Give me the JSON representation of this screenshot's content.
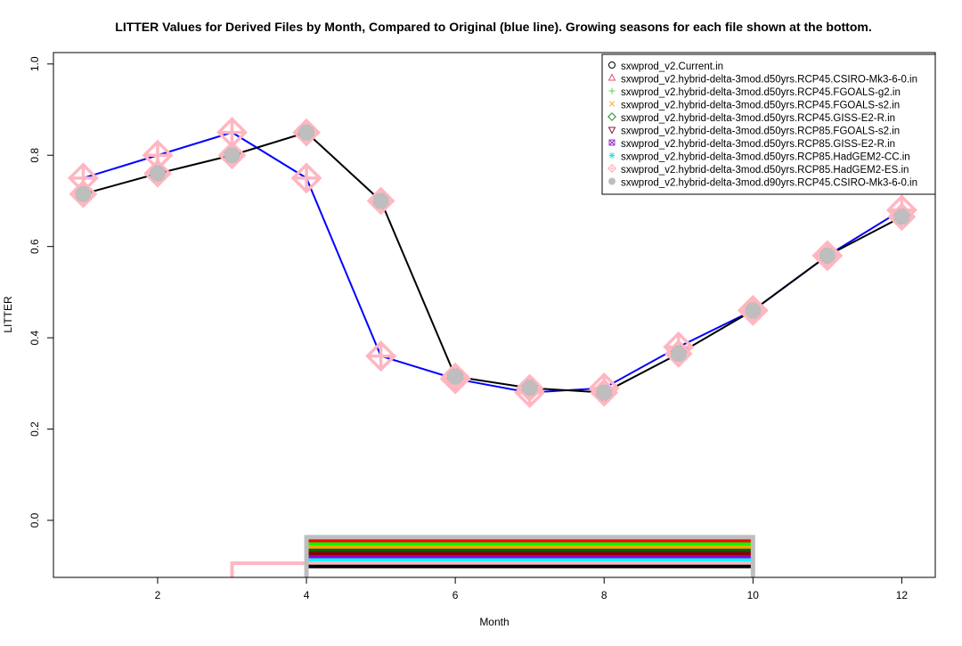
{
  "chart_data": {
    "type": "line",
    "title": "LITTER Values for Derived Files by Month, Compared to Original (blue line). Growing seasons for each file shown at the bottom.",
    "xlabel": "Month",
    "ylabel": "LITTER",
    "xlim": [
      0.6,
      12.45
    ],
    "ylim": [
      -0.125,
      1.025
    ],
    "x_ticks": [
      2,
      4,
      6,
      8,
      10,
      12
    ],
    "y_ticks": [
      0.0,
      0.2,
      0.4,
      0.6,
      0.8,
      1.0
    ],
    "x_tick_labels": [
      "2",
      "4",
      "6",
      "8",
      "10",
      "12"
    ],
    "y_tick_labels": [
      "0.0",
      "0.2",
      "0.4",
      "0.6",
      "0.8",
      "1.0"
    ],
    "grid": false,
    "legend_position": "top-right",
    "months": [
      1,
      2,
      3,
      4,
      5,
      6,
      7,
      8,
      9,
      10,
      11,
      12
    ],
    "original_line": {
      "color": "#0000ff",
      "values": [
        0.75,
        0.8,
        0.85,
        0.75,
        0.36,
        0.31,
        0.28,
        0.29,
        0.38,
        0.46,
        0.58,
        0.68
      ]
    },
    "derived_line": {
      "color": "#000000",
      "values": [
        0.715,
        0.76,
        0.8,
        0.85,
        0.7,
        0.315,
        0.29,
        0.28,
        0.365,
        0.46,
        0.58,
        0.665
      ]
    },
    "series": [
      {
        "name": "sxwprod_v2.Current.in",
        "symbol": "circle",
        "color": "#000000"
      },
      {
        "name": "sxwprod_v2.hybrid-delta-3mod.d50yrs.RCP45.CSIRO-Mk3-6-0.in",
        "symbol": "triangle-up",
        "color": "#df536b"
      },
      {
        "name": "sxwprod_v2.hybrid-delta-3mod.d50yrs.RCP45.FGOALS-g2.in",
        "symbol": "plus",
        "color": "#61d04f"
      },
      {
        "name": "sxwprod_v2.hybrid-delta-3mod.d50yrs.RCP45.FGOALS-s2.in",
        "symbol": "cross",
        "color": "#f5a623"
      },
      {
        "name": "sxwprod_v2.hybrid-delta-3mod.d50yrs.RCP45.GISS-E2-R.in",
        "symbol": "diamond",
        "color": "#228b22"
      },
      {
        "name": "sxwprod_v2.hybrid-delta-3mod.d50yrs.RCP85.FGOALS-s2.in",
        "symbol": "triangle-down",
        "color": "#8b1a3a"
      },
      {
        "name": "sxwprod_v2.hybrid-delta-3mod.d50yrs.RCP85.GISS-E2-R.in",
        "symbol": "square-cross",
        "color": "#9932cc"
      },
      {
        "name": "sxwprod_v2.hybrid-delta-3mod.d50yrs.RCP85.HadGEM2-CC.in",
        "symbol": "asterisk",
        "color": "#40e0d0"
      },
      {
        "name": "sxwprod_v2.hybrid-delta-3mod.d50yrs.RCP85.HadGEM2-ES.in",
        "symbol": "diamond-plus",
        "color": "#ffb6c1"
      },
      {
        "name": "sxwprod_v2.hybrid-delta-3mod.d90yrs.RCP45.CSIRO-Mk3-6-0.in",
        "symbol": "circle-filled",
        "color": "#bebebe"
      }
    ],
    "growing_seasons": {
      "start_month": 4,
      "end_month": 10,
      "bars": [
        {
          "color": "#bebebe",
          "level": -0.037
        },
        {
          "color": "#ff0000",
          "level": -0.045
        },
        {
          "color": "#00ff00",
          "level": -0.052
        },
        {
          "color": "#ffa500",
          "level": -0.059
        },
        {
          "color": "#006400",
          "level": -0.066
        },
        {
          "color": "#8b0000",
          "level": -0.073
        },
        {
          "color": "#9400d3",
          "level": -0.08
        },
        {
          "color": "#00ffff",
          "level": -0.087
        },
        {
          "color": "#ffb6c1",
          "level": -0.094
        },
        {
          "color": "#000000",
          "level": -0.101
        }
      ],
      "original_season": {
        "color": "#ffb6c1",
        "start_month": 3,
        "end_month": 4,
        "level": -0.095
      }
    }
  }
}
